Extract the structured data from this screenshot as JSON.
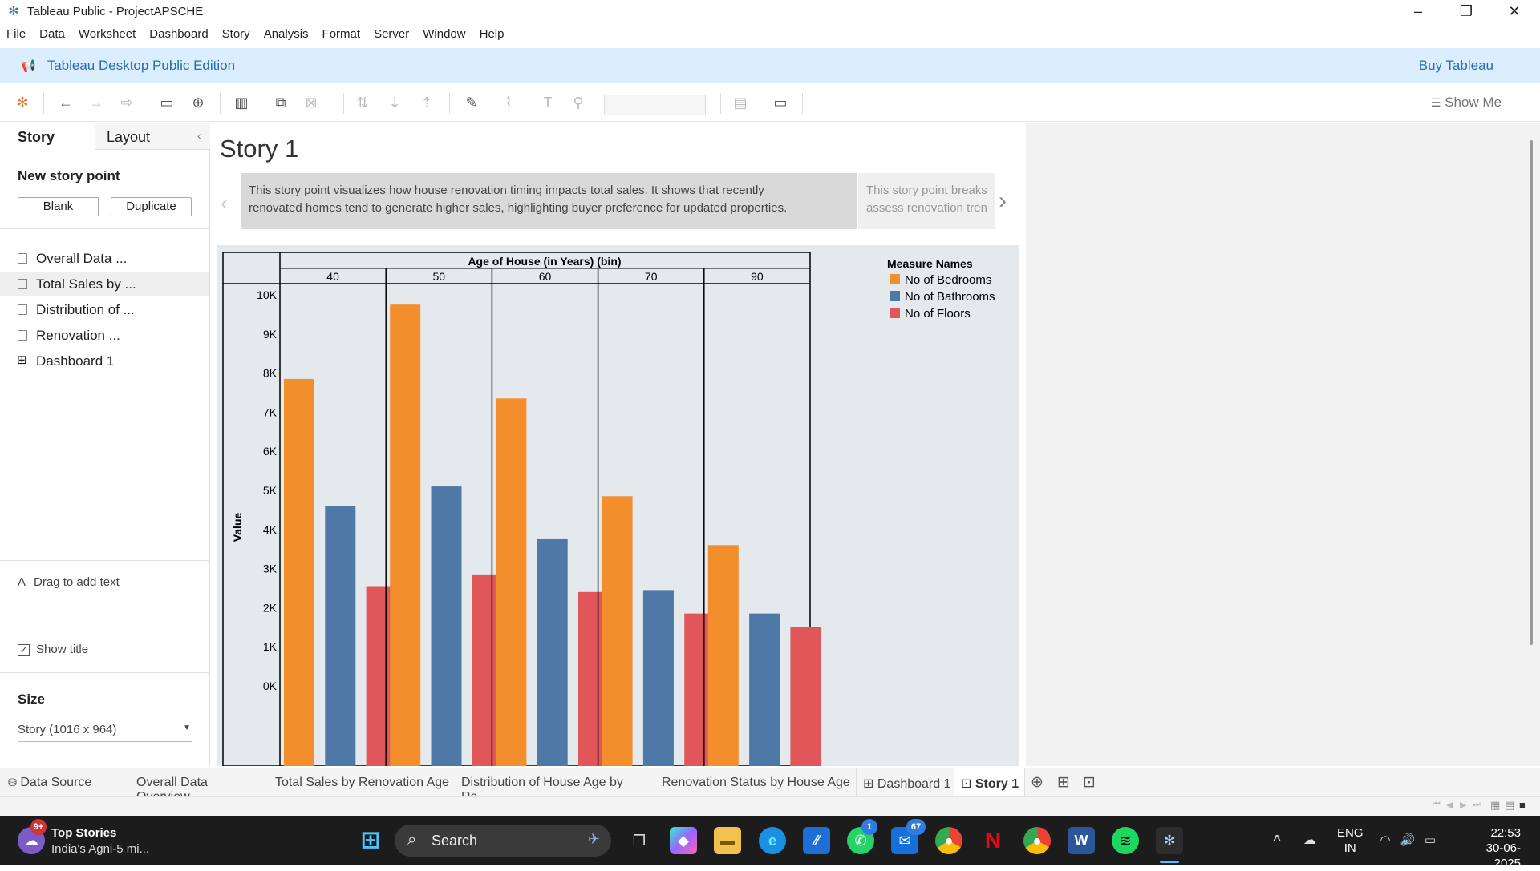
{
  "window": {
    "title": "Tableau Public - ProjectAPSCHE"
  },
  "menu": [
    "File",
    "Data",
    "Worksheet",
    "Dashboard",
    "Story",
    "Analysis",
    "Format",
    "Server",
    "Window",
    "Help"
  ],
  "banner": {
    "edition": "Tableau Desktop Public Edition",
    "buy": "Buy Tableau"
  },
  "toolbar": {
    "show_me": "Show Me"
  },
  "left_pane": {
    "tabs": {
      "story": "Story",
      "layout": "Layout"
    },
    "new_story_point": "New story point",
    "blank_label": "Blank",
    "duplicate_label": "Duplicate",
    "story_points": [
      "Overall Data ...",
      "Total Sales by ...",
      "Distribution of ...",
      "Renovation ...",
      "Dashboard 1"
    ],
    "drag_text": "Drag to add text",
    "show_title": "Show title",
    "size_heading": "Size",
    "size_value": "Story (1016 x 964)"
  },
  "story": {
    "title": "Story 1",
    "caption1_line1": "This story point visualizes how house renovation timing impacts total sales. It shows that recently",
    "caption1_line2": "renovated homes tend to generate higher sales, highlighting buyer preference for updated properties.",
    "caption2_line1": "This story point breaks",
    "caption2_line2": "assess renovation tren"
  },
  "chart_data": {
    "type": "bar",
    "title": "Age of House (in Years) (bin)",
    "ylabel": "Value",
    "categories": [
      "40",
      "50",
      "60",
      "70",
      "90"
    ],
    "legend_title": "Measure Names",
    "legend_placement": "right",
    "y_ticks": [
      "10K",
      "9K",
      "8K",
      "7K",
      "6K",
      "5K",
      "4K",
      "3K",
      "2K",
      "1K",
      "0K"
    ],
    "ylim": [
      0,
      10000
    ],
    "series": [
      {
        "name": "No of Bedrooms",
        "color": "#f28e2b",
        "values": [
          7850,
          9750,
          7350,
          4850,
          3600
        ]
      },
      {
        "name": "No of Bathrooms",
        "color": "#4e79a7",
        "values": [
          4600,
          5100,
          3750,
          2450,
          1850
        ]
      },
      {
        "name": "No of Floors",
        "color": "#e15759",
        "values": [
          2550,
          2850,
          2400,
          1850,
          1500
        ]
      }
    ]
  },
  "bottom_tabs": {
    "data_source": "Data Source",
    "sheets": [
      "Overall Data Overview",
      "Total Sales by Renovation Age",
      "Distribution of House Age by Re...",
      "Renovation Status by House Age"
    ],
    "dashboard": "Dashboard 1",
    "story": "Story 1"
  },
  "taskbar": {
    "news_title": "Top Stories",
    "news_sub": "India's Agni-5 mi...",
    "news_badge": "9+",
    "search": "Search",
    "whatsapp_badge": "1",
    "mail_badge": "67",
    "lang1": "ENG",
    "lang2": "IN",
    "time": "22:53",
    "date": "30-06-2025"
  }
}
